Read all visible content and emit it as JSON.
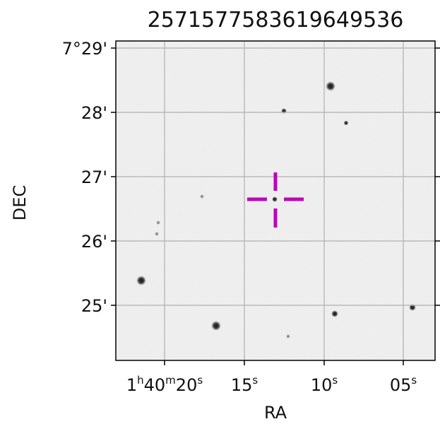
{
  "title": "2571577583619649536",
  "xlabel": "RA",
  "ylabel": "DEC",
  "ra_ticks": [
    {
      "hms": "1h40m20s",
      "h": "1",
      "m": "40",
      "s": "20"
    },
    {
      "s": "15"
    },
    {
      "s": "10"
    },
    {
      "s": "05"
    }
  ],
  "dec_ticks": [
    "7°29'",
    "28'",
    "27'",
    "26'",
    "25'"
  ],
  "grid": true,
  "marker": {
    "type": "crosshair",
    "color": "#c000c0"
  },
  "colors": {
    "background": "#f3f3f3",
    "grid": "#b0b0b0",
    "frame": "#000000"
  }
}
